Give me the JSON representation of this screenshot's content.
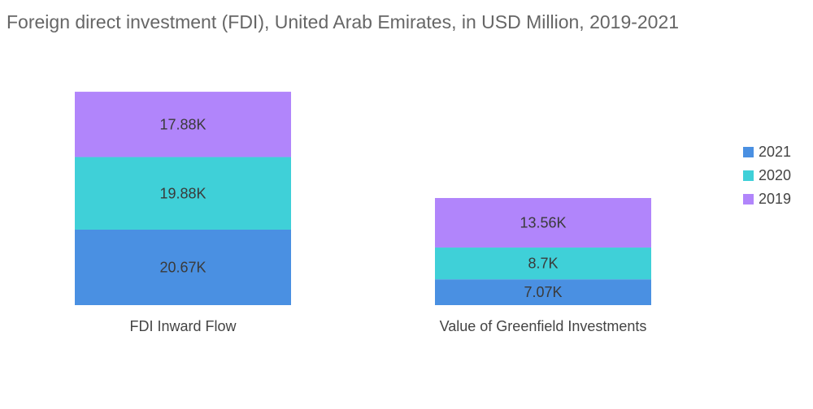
{
  "chart_data": {
    "type": "bar",
    "stacked": true,
    "title": "Foreign direct investment (FDI), United Arab Emirates, in USD Million, 2019-2021",
    "categories": [
      "FDI Inward Flow",
      "Value of Greenfield Investments"
    ],
    "series": [
      {
        "name": "2021",
        "color": "#4a90e2",
        "values": [
          20.67,
          7.07
        ],
        "labels": [
          "20.67K",
          "7.07K"
        ]
      },
      {
        "name": "2020",
        "color": "#3fd0d8",
        "values": [
          19.88,
          8.7
        ],
        "labels": [
          "19.88K",
          "8.7K"
        ]
      },
      {
        "name": "2019",
        "color": "#b185fb",
        "values": [
          17.88,
          13.56
        ],
        "labels": [
          "17.88K",
          "13.56K"
        ]
      }
    ],
    "unit": "thousand USD million",
    "legend_position": "right",
    "grid": false
  }
}
